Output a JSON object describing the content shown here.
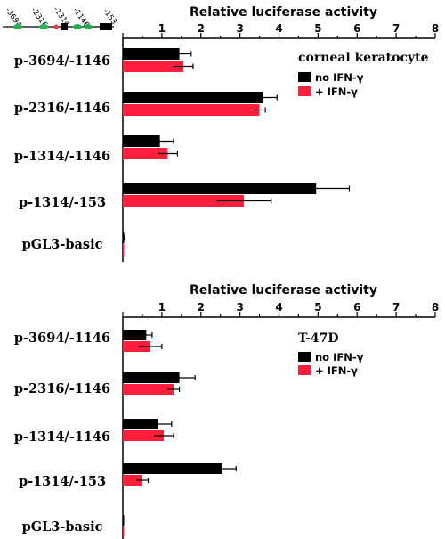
{
  "schematic": {
    "labels": [
      "-3694",
      "-2316",
      "-1314",
      "-1146",
      "-153"
    ],
    "colors": {
      "line": "#000000",
      "site_green": "#22b14c",
      "site_red": "#ff2d3b",
      "box": "#000000"
    }
  },
  "colors": {
    "no_ifn": "#000000",
    "ifn": "#ff1f3c",
    "axis": "#000000"
  },
  "chart_data": [
    {
      "type": "bar",
      "orientation": "horizontal",
      "title": "corneal keratocyte",
      "xlabel": "Relative luciferase activity",
      "xlim": [
        0,
        8
      ],
      "xticks": [
        "1",
        "2",
        "3",
        "4",
        "5",
        "6",
        "7",
        "8"
      ],
      "grid": false,
      "legend": "right",
      "categories": [
        "p-3694/-1146",
        "p-2316/-1146",
        "p-1314/-1146",
        "p-1314/-153",
        "pGL3-basic"
      ],
      "series": [
        {
          "name": "no IFN-γ",
          "color": "#000000",
          "values": [
            1.45,
            3.6,
            0.95,
            4.95,
            0.03
          ],
          "errors": [
            0.3,
            0.35,
            0.35,
            0.85,
            0.02
          ]
        },
        {
          "name": "+ IFN-γ",
          "color": "#ff1f3c",
          "values": [
            1.55,
            3.5,
            1.15,
            3.1,
            0.02
          ],
          "errors": [
            0.25,
            0.15,
            0.25,
            0.7,
            0.01
          ]
        }
      ]
    },
    {
      "type": "bar",
      "orientation": "horizontal",
      "title": "T-47D",
      "xlabel": "Relative luciferase activity",
      "xlim": [
        0,
        8
      ],
      "xticks": [
        "1",
        "2",
        "3",
        "4",
        "5",
        "6",
        "7",
        "8"
      ],
      "grid": false,
      "legend": "right",
      "categories": [
        "p-3694/-1146",
        "p-2316/-1146",
        "p-1314/-1146",
        "p-1314/-153",
        "pGL3-basic"
      ],
      "series": [
        {
          "name": "no IFN-γ",
          "color": "#000000",
          "values": [
            0.6,
            1.45,
            0.9,
            2.55,
            0.02
          ],
          "errors": [
            0.15,
            0.4,
            0.35,
            0.35,
            0.01
          ]
        },
        {
          "name": "+ IFN-γ",
          "color": "#ff1f3c",
          "values": [
            0.7,
            1.3,
            1.05,
            0.5,
            0.01
          ],
          "errors": [
            0.3,
            0.15,
            0.25,
            0.15,
            0.01
          ]
        }
      ]
    }
  ]
}
